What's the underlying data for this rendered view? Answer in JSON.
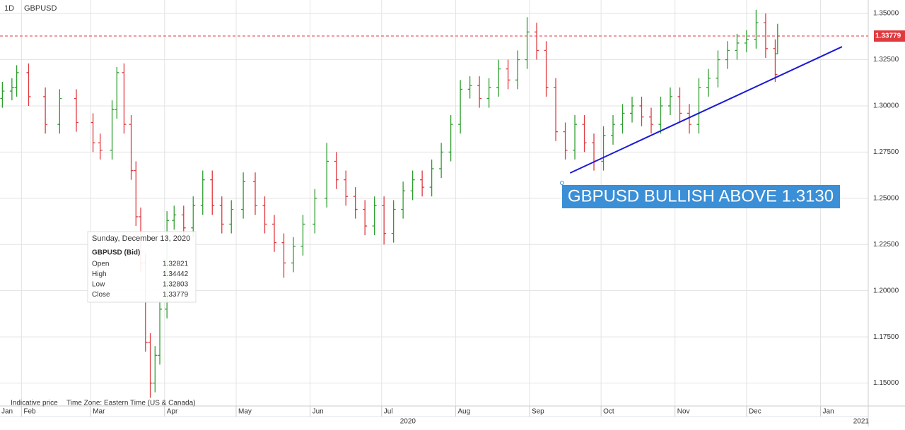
{
  "chart_data": {
    "type": "ohlc",
    "interval": "1D",
    "symbol": "GBPUSD",
    "footer_left": "Indicative price",
    "footer_timezone": "Time Zone: Eastern Time (US & Canada)",
    "up_color": "#2e9e2e",
    "down_color": "#e0393e",
    "grid": true,
    "xlim": [
      23,
      387
    ],
    "ylim": [
      1.1376,
      1.3573
    ],
    "xticks": [
      {
        "value": 1,
        "label": "Jan"
      },
      {
        "value": 32,
        "label": "Feb"
      },
      {
        "value": 61,
        "label": "Mar"
      },
      {
        "value": 92,
        "label": "Apr"
      },
      {
        "value": 122,
        "label": "May"
      },
      {
        "value": 153,
        "label": "Jun"
      },
      {
        "value": 183,
        "label": "Jul"
      },
      {
        "value": 214,
        "label": "Aug"
      },
      {
        "value": 245,
        "label": "Sep"
      },
      {
        "value": 275,
        "label": "Oct"
      },
      {
        "value": 306,
        "label": "Nov"
      },
      {
        "value": 336,
        "label": "Dec"
      },
      {
        "value": 367,
        "label": "Jan"
      }
    ],
    "year_ticks": [
      {
        "value": 194,
        "label": "2020"
      },
      {
        "value": 384,
        "label": "2021"
      }
    ],
    "yticks": [
      {
        "value": 1.15,
        "label": "1.15000"
      },
      {
        "value": 1.175,
        "label": "1.17500"
      },
      {
        "value": 1.2,
        "label": "1.20000"
      },
      {
        "value": 1.225,
        "label": "1.22500"
      },
      {
        "value": 1.25,
        "label": "1.25000"
      },
      {
        "value": 1.275,
        "label": "1.27500"
      },
      {
        "value": 1.3,
        "label": "1.30000"
      },
      {
        "value": 1.325,
        "label": "1.32500"
      },
      {
        "value": 1.35,
        "label": "1.35000"
      }
    ],
    "x": [
      24,
      28,
      30,
      35,
      42,
      48,
      55,
      62,
      65,
      70,
      72,
      75,
      78,
      80,
      82,
      84,
      86,
      88,
      90,
      93,
      96,
      100,
      104,
      108,
      112,
      116,
      120,
      125,
      130,
      134,
      138,
      142,
      146,
      150,
      155,
      160,
      164,
      168,
      172,
      176,
      180,
      184,
      188,
      192,
      196,
      200,
      204,
      208,
      212,
      216,
      220,
      224,
      228,
      232,
      236,
      240,
      244,
      248,
      252,
      256,
      260,
      264,
      268,
      272,
      276,
      280,
      284,
      288,
      292,
      296,
      300,
      304,
      308,
      312,
      316,
      320,
      324,
      328,
      332,
      336,
      340,
      344,
      348,
      349
    ],
    "open": [
      1.304,
      1.308,
      1.31,
      1.318,
      1.305,
      1.29,
      1.304,
      1.291,
      1.28,
      1.276,
      1.298,
      1.318,
      1.29,
      1.265,
      1.24,
      1.215,
      1.172,
      1.15,
      1.165,
      1.19,
      1.238,
      1.241,
      1.234,
      1.246,
      1.26,
      1.246,
      1.236,
      1.244,
      1.259,
      1.246,
      1.236,
      1.226,
      1.215,
      1.224,
      1.236,
      1.25,
      1.27,
      1.26,
      1.251,
      1.244,
      1.235,
      1.246,
      1.231,
      1.244,
      1.254,
      1.26,
      1.256,
      1.266,
      1.275,
      1.29,
      1.309,
      1.311,
      1.304,
      1.31,
      1.32,
      1.314,
      1.325,
      1.34,
      1.33,
      1.31,
      1.286,
      1.276,
      1.29,
      1.28,
      1.27,
      1.284,
      1.29,
      1.296,
      1.3,
      1.294,
      1.29,
      1.3,
      1.305,
      1.296,
      1.29,
      1.31,
      1.315,
      1.325,
      1.33,
      1.334,
      1.336,
      1.345,
      1.331,
      1.32821
    ],
    "high": [
      1.313,
      1.315,
      1.322,
      1.323,
      1.31,
      1.309,
      1.309,
      1.296,
      1.285,
      1.303,
      1.321,
      1.323,
      1.295,
      1.27,
      1.245,
      1.22,
      1.177,
      1.17,
      1.195,
      1.243,
      1.246,
      1.246,
      1.251,
      1.265,
      1.265,
      1.251,
      1.249,
      1.264,
      1.264,
      1.251,
      1.241,
      1.231,
      1.229,
      1.241,
      1.255,
      1.28,
      1.275,
      1.265,
      1.256,
      1.249,
      1.251,
      1.251,
      1.249,
      1.259,
      1.265,
      1.265,
      1.271,
      1.28,
      1.295,
      1.314,
      1.316,
      1.316,
      1.315,
      1.325,
      1.325,
      1.33,
      1.348,
      1.345,
      1.335,
      1.315,
      1.291,
      1.295,
      1.295,
      1.285,
      1.289,
      1.295,
      1.301,
      1.305,
      1.305,
      1.299,
      1.305,
      1.31,
      1.31,
      1.301,
      1.315,
      1.32,
      1.33,
      1.335,
      1.339,
      1.341,
      1.352,
      1.35,
      1.336,
      1.34442
    ],
    "low": [
      1.299,
      1.303,
      1.305,
      1.3,
      1.285,
      1.285,
      1.286,
      1.275,
      1.271,
      1.271,
      1.293,
      1.285,
      1.26,
      1.235,
      1.21,
      1.167,
      1.142,
      1.145,
      1.16,
      1.185,
      1.233,
      1.229,
      1.229,
      1.241,
      1.241,
      1.231,
      1.231,
      1.239,
      1.241,
      1.231,
      1.221,
      1.207,
      1.21,
      1.219,
      1.231,
      1.245,
      1.255,
      1.246,
      1.239,
      1.23,
      1.23,
      1.225,
      1.226,
      1.239,
      1.249,
      1.251,
      1.251,
      1.261,
      1.27,
      1.285,
      1.304,
      1.299,
      1.299,
      1.305,
      1.309,
      1.309,
      1.32,
      1.325,
      1.305,
      1.281,
      1.271,
      1.271,
      1.275,
      1.265,
      1.265,
      1.279,
      1.285,
      1.291,
      1.289,
      1.285,
      1.285,
      1.295,
      1.291,
      1.285,
      1.285,
      1.305,
      1.31,
      1.32,
      1.325,
      1.329,
      1.331,
      1.326,
      1.313,
      1.32803
    ],
    "close": [
      1.308,
      1.31,
      1.318,
      1.305,
      1.29,
      1.304,
      1.291,
      1.28,
      1.276,
      1.298,
      1.318,
      1.29,
      1.265,
      1.24,
      1.215,
      1.172,
      1.15,
      1.165,
      1.19,
      1.238,
      1.241,
      1.234,
      1.246,
      1.26,
      1.246,
      1.236,
      1.244,
      1.259,
      1.246,
      1.236,
      1.226,
      1.215,
      1.224,
      1.236,
      1.25,
      1.27,
      1.26,
      1.251,
      1.244,
      1.235,
      1.246,
      1.231,
      1.244,
      1.254,
      1.26,
      1.256,
      1.266,
      1.275,
      1.29,
      1.309,
      1.311,
      1.304,
      1.31,
      1.32,
      1.314,
      1.325,
      1.34,
      1.33,
      1.31,
      1.286,
      1.276,
      1.29,
      1.28,
      1.27,
      1.284,
      1.29,
      1.296,
      1.3,
      1.294,
      1.29,
      1.3,
      1.305,
      1.296,
      1.29,
      1.31,
      1.315,
      1.325,
      1.33,
      1.334,
      1.336,
      1.345,
      1.331,
      1.317,
      1.33779
    ],
    "last_price": 1.33779,
    "trendline": {
      "x": [
        262,
        376
      ],
      "y": [
        1.2637,
        1.332
      ],
      "color": "#1a1ad6"
    },
    "annotation": {
      "text": "GBPUSD BULLISH ABOVE 1.3130",
      "color": "#3a8fd6"
    },
    "tooltip": {
      "date": "Sunday, December 13, 2020",
      "title": "GBPUSD (Bid)",
      "rows": [
        [
          "Open",
          "1.32821"
        ],
        [
          "High",
          "1.34442"
        ],
        [
          "Low",
          "1.32803"
        ],
        [
          "Close",
          "1.33779"
        ]
      ]
    }
  }
}
